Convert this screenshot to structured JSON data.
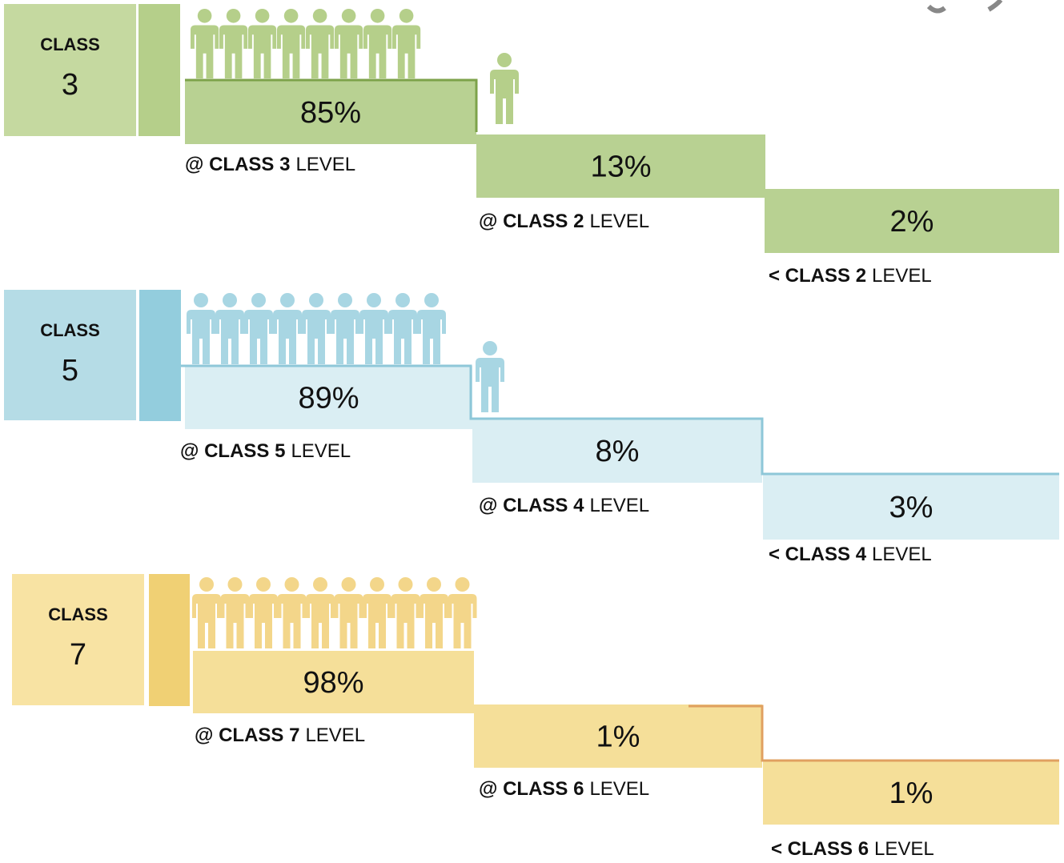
{
  "groups": [
    {
      "class_label": "CLASS",
      "class_number": "3",
      "steps": [
        {
          "value": "85%",
          "label_bold": "@ CLASS 3",
          "label_rest": "LEVEL"
        },
        {
          "value": "13%",
          "label_bold": "@ CLASS 2",
          "label_rest": "LEVEL"
        },
        {
          "value": "2%",
          "label_bold": "< CLASS 2",
          "label_rest": "LEVEL"
        }
      ]
    },
    {
      "class_label": "CLASS",
      "class_number": "5",
      "steps": [
        {
          "value": "89%",
          "label_bold": "@ CLASS 5",
          "label_rest": "LEVEL"
        },
        {
          "value": "8%",
          "label_bold": "@ CLASS 4",
          "label_rest": "LEVEL"
        },
        {
          "value": "3%",
          "label_bold": "< CLASS 4",
          "label_rest": "LEVEL"
        }
      ]
    },
    {
      "class_label": "CLASS",
      "class_number": "7",
      "steps": [
        {
          "value": "98%",
          "label_bold": "@ CLASS 7",
          "label_rest": "LEVEL"
        },
        {
          "value": "1%",
          "label_bold": "@ CLASS 6",
          "label_rest": "LEVEL"
        },
        {
          "value": "1%",
          "label_bold": "< CLASS 6",
          "label_rest": "LEVEL"
        }
      ]
    }
  ]
}
